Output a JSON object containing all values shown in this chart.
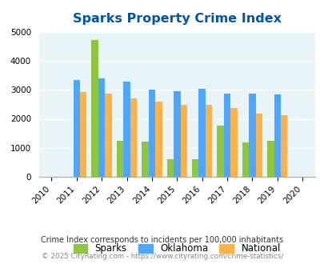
{
  "title": "Sparks Property Crime Index",
  "bar_years": [
    2011,
    2012,
    2013,
    2014,
    2015,
    2016,
    2017,
    2018,
    2019
  ],
  "sparks": [
    0,
    4700,
    1230,
    1220,
    600,
    600,
    1770,
    1190,
    1230
  ],
  "oklahoma": [
    3340,
    3400,
    3290,
    3010,
    2940,
    3020,
    2880,
    2870,
    2850
  ],
  "national": [
    2930,
    2870,
    2700,
    2600,
    2490,
    2470,
    2360,
    2190,
    2130
  ],
  "sparks_has_bar": [
    false,
    true,
    true,
    true,
    true,
    true,
    true,
    true,
    true
  ],
  "sparks_color": "#8dc63f",
  "oklahoma_color": "#4da6ff",
  "national_color": "#ffb347",
  "background_color": "#e8f4f8",
  "ylim": [
    0,
    5000
  ],
  "yticks": [
    0,
    1000,
    2000,
    3000,
    4000,
    5000
  ],
  "xlim": [
    2009.5,
    2020.5
  ],
  "xtick_years": [
    2010,
    2011,
    2012,
    2013,
    2014,
    2015,
    2016,
    2017,
    2018,
    2019,
    2020
  ],
  "legend_labels": [
    "Sparks",
    "Oklahoma",
    "National"
  ],
  "footnote1": "Crime Index corresponds to incidents per 100,000 inhabitants",
  "footnote2": "© 2025 CityRating.com - https://www.cityrating.com/crime-statistics/",
  "title_color": "#0055aa",
  "footnote1_color": "#333333",
  "footnote2_color": "#888888"
}
